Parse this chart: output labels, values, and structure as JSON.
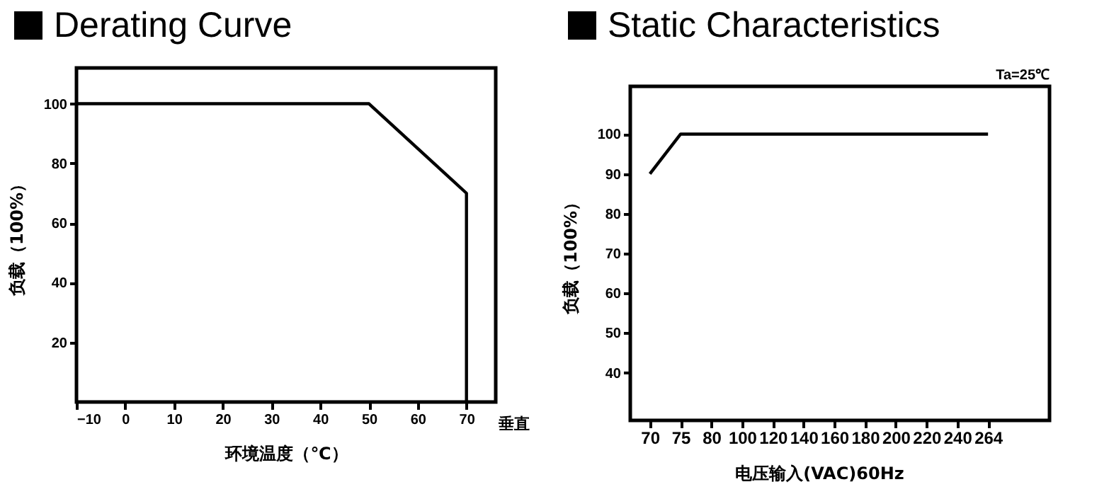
{
  "chart_data": [
    {
      "type": "line",
      "title": "Derating Curve",
      "xlabel": "环境温度（℃）",
      "ylabel": "负载（100%）",
      "annotations": [
        "垂直"
      ],
      "x": [
        -10,
        50,
        70,
        70
      ],
      "series": [
        {
          "color": "#000000",
          "values": [
            100,
            100,
            70,
            0
          ]
        }
      ],
      "xlim": [
        -10,
        76
      ],
      "xticks": [
        -10,
        0,
        10,
        20,
        30,
        40,
        50,
        60,
        70
      ],
      "ylim": [
        0,
        112
      ],
      "yticks": [
        20,
        40,
        60,
        80,
        100
      ],
      "grid": false,
      "legend": false,
      "marker": "none",
      "line_style": "solid"
    },
    {
      "type": "line",
      "title": "Static Characteristics",
      "xlabel": "电压输入(VAC)60Hz",
      "ylabel": "负载（100%）",
      "annotations": [
        "Ta=25℃"
      ],
      "categories": [
        "70",
        "75",
        "80",
        "100",
        "120",
        "140",
        "160",
        "180",
        "200",
        "220",
        "240",
        "264"
      ],
      "series": [
        {
          "color": "#000000",
          "values": [
            90,
            100,
            100,
            100,
            100,
            100,
            100,
            100,
            100,
            100,
            100,
            100
          ]
        }
      ],
      "ylim": [
        28,
        112
      ],
      "yticks": [
        40,
        50,
        60,
        70,
        80,
        90,
        100
      ],
      "grid": false,
      "legend": false,
      "marker": "none",
      "line_style": "solid"
    }
  ]
}
